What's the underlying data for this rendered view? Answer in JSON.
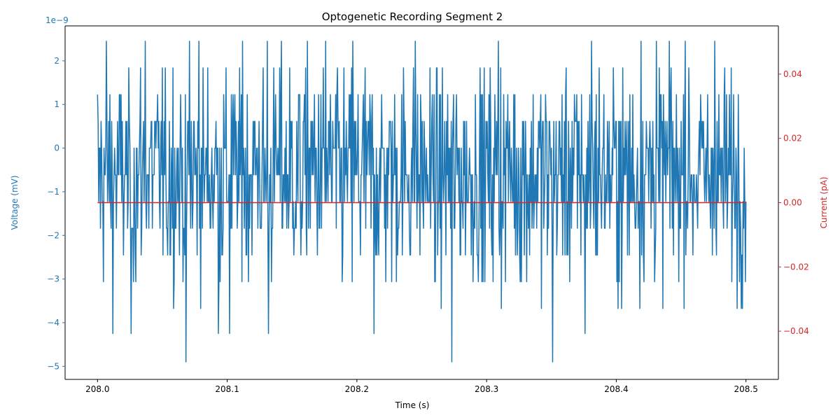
{
  "chart_data": {
    "type": "line",
    "title": "Optogenetic Recording Segment 2",
    "xlabel": "Time (s)",
    "ylabel_left": "Voltage (mV)",
    "ylabel_right": "Current (pA)",
    "left_offset_label": "1e−9",
    "xlim": [
      207.975,
      208.525
    ],
    "ylim_left": [
      -5.3,
      2.8
    ],
    "ylim_right": [
      -0.055,
      0.055
    ],
    "x_ticks": [
      208.0,
      208.1,
      208.2,
      208.3,
      208.4,
      208.5
    ],
    "x_tick_labels": [
      "208.0",
      "208.1",
      "208.2",
      "208.3",
      "208.4",
      "208.5"
    ],
    "y_left_ticks": [
      2,
      1,
      0,
      -1,
      -2,
      -3,
      -4,
      -5
    ],
    "y_left_tick_labels": [
      "2",
      "1",
      "0",
      "−1",
      "−2",
      "−3",
      "−4",
      "−5"
    ],
    "y_right_ticks": [
      0.04,
      0.02,
      0.0,
      -0.02,
      -0.04
    ],
    "y_right_tick_labels": [
      "0.04",
      "0.02",
      "0.00",
      "−0.02",
      "−0.04"
    ],
    "grid": false,
    "legend": "none",
    "colors": {
      "voltage": "#1f77b4",
      "current": "#d62728",
      "axis": "#000000"
    },
    "series": [
      {
        "axis": "left",
        "x_start": 208.0,
        "x_end": 208.5,
        "quantization_step": 0.6,
        "min": -4.9,
        "max": 2.45,
        "values_note_count": 0,
        "extremes": [
          {
            "x": 208.068,
            "y": -4.9
          },
          {
            "x": 208.273,
            "y": -4.9
          },
          {
            "x": 208.351,
            "y": -4.9
          },
          {
            "x": 208.007,
            "y": 2.45
          },
          {
            "x": 208.026,
            "y": 2.45
          },
          {
            "x": 208.037,
            "y": 2.45
          },
          {
            "x": 208.071,
            "y": 2.45
          },
          {
            "x": 208.078,
            "y": 2.45
          },
          {
            "x": 208.112,
            "y": 2.45
          },
          {
            "x": 208.131,
            "y": 2.45
          },
          {
            "x": 208.142,
            "y": 2.45
          },
          {
            "x": 208.162,
            "y": 2.45
          },
          {
            "x": 208.176,
            "y": 2.45
          },
          {
            "x": 208.197,
            "y": 2.45
          },
          {
            "x": 208.245,
            "y": 2.45
          },
          {
            "x": 208.309,
            "y": 2.45
          },
          {
            "x": 208.381,
            "y": 2.45
          },
          {
            "x": 208.419,
            "y": 2.45
          },
          {
            "x": 208.431,
            "y": 2.45
          },
          {
            "x": 208.441,
            "y": 2.45
          },
          {
            "x": 208.453,
            "y": 2.45
          },
          {
            "x": 208.476,
            "y": 2.45
          },
          {
            "x": 208.012,
            "y": -4.25
          },
          {
            "x": 208.026,
            "y": -4.25
          },
          {
            "x": 208.093,
            "y": -4.25
          },
          {
            "x": 208.102,
            "y": -4.25
          },
          {
            "x": 208.132,
            "y": -4.25
          },
          {
            "x": 208.213,
            "y": -4.25
          },
          {
            "x": 208.376,
            "y": -4.25
          }
        ]
      },
      {
        "axis": "right",
        "x": [
          208.0,
          208.5
        ],
        "values": [
          0.0,
          0.0
        ]
      }
    ]
  }
}
